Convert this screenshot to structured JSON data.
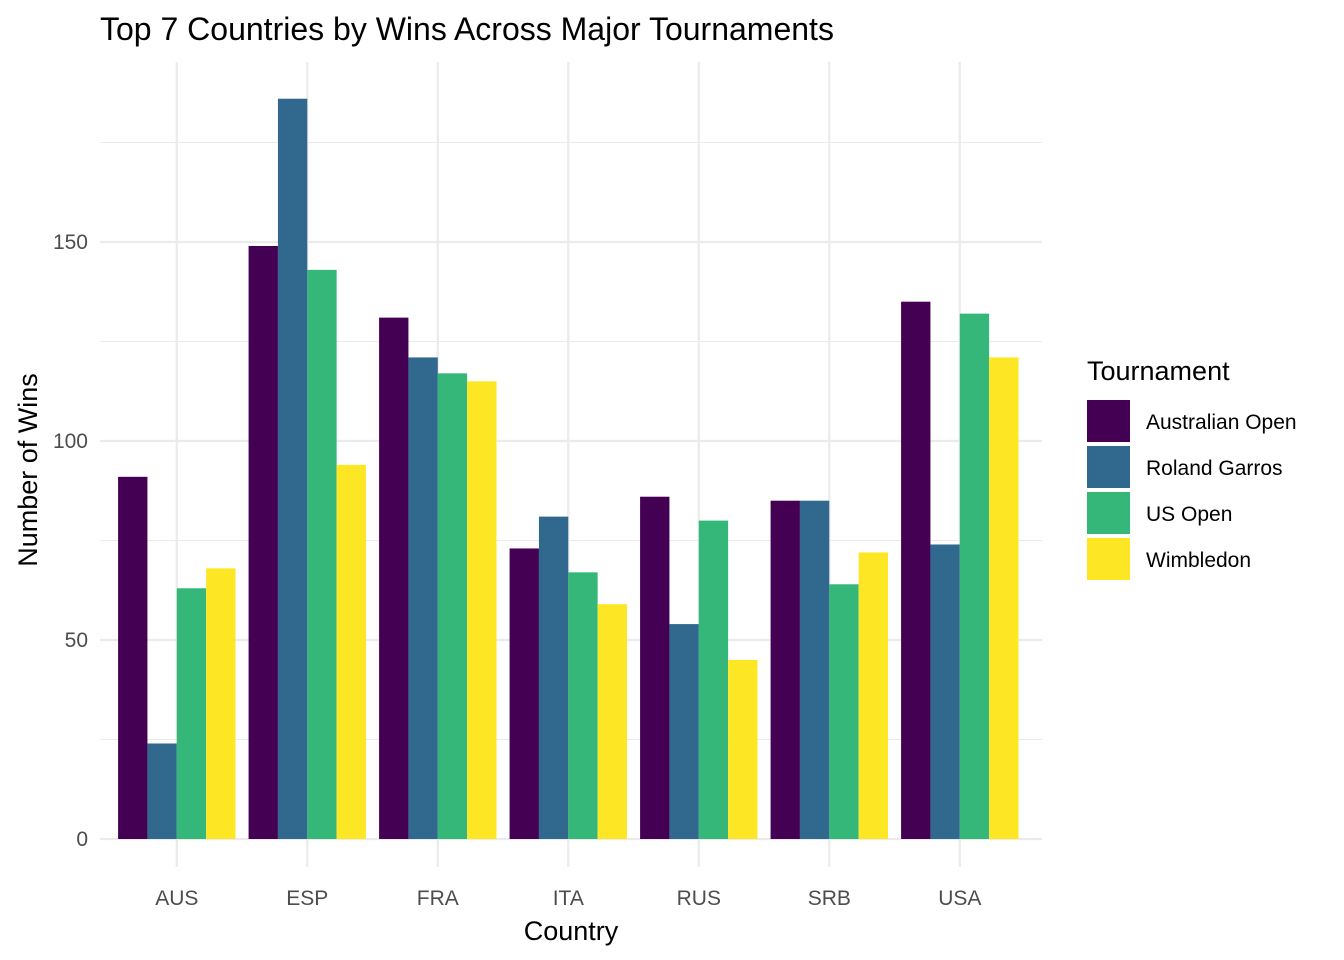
{
  "chart_data": {
    "type": "bar",
    "title": "Top 7 Countries by Wins Across Major Tournaments",
    "xlabel": "Country",
    "ylabel": "Number of Wins",
    "categories": [
      "AUS",
      "ESP",
      "FRA",
      "ITA",
      "RUS",
      "SRB",
      "USA"
    ],
    "series": [
      {
        "name": "Australian Open",
        "color": "#440154",
        "values": [
          91,
          149,
          131,
          73,
          86,
          85,
          135
        ]
      },
      {
        "name": "Roland Garros",
        "color": "#31688E",
        "values": [
          24,
          186,
          121,
          81,
          54,
          85,
          74
        ]
      },
      {
        "name": "US Open",
        "color": "#35B779",
        "values": [
          63,
          143,
          117,
          67,
          80,
          64,
          132
        ]
      },
      {
        "name": "Wimbledon",
        "color": "#FDE725",
        "values": [
          68,
          94,
          115,
          59,
          45,
          72,
          121
        ]
      }
    ],
    "ylim": [
      0,
      195
    ],
    "yticks": [
      0,
      50,
      100,
      150
    ],
    "grid": true,
    "legend": {
      "title": "Tournament",
      "position": "right"
    }
  }
}
